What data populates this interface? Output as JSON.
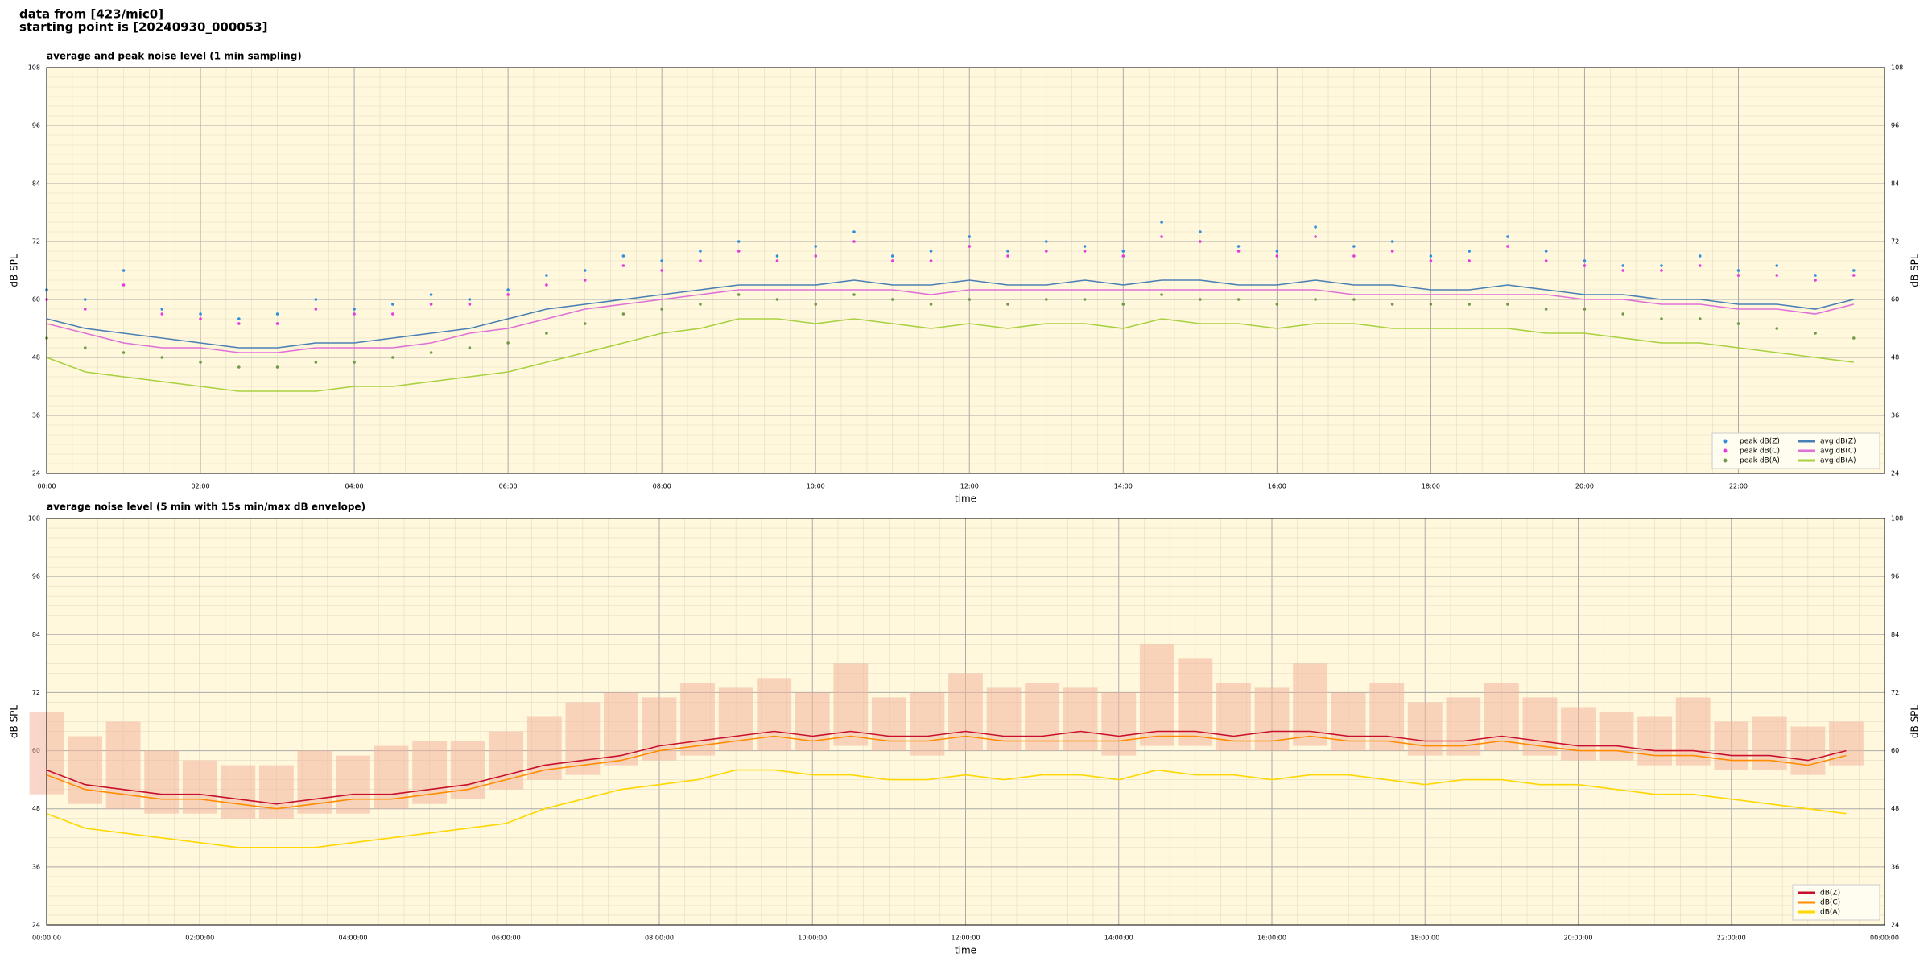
{
  "header": [
    "data from [423/mic0]",
    "starting point is [20240930_000053]"
  ],
  "chart_data": [
    {
      "type": "line",
      "title": "average and peak noise level (1 min sampling)",
      "xlabel": "time",
      "ylabel": "dB SPL",
      "xlim": [
        0,
        1434
      ],
      "ylim": [
        24,
        108
      ],
      "yticks": [
        24,
        36,
        48,
        60,
        72,
        84,
        96,
        108
      ],
      "xticks": [
        {
          "value": 0,
          "label": "00:00"
        },
        {
          "value": 120,
          "label": "02:00"
        },
        {
          "value": 240,
          "label": "04:00"
        },
        {
          "value": 360,
          "label": "06:00"
        },
        {
          "value": 480,
          "label": "08:00"
        },
        {
          "value": 600,
          "label": "10:00"
        },
        {
          "value": 720,
          "label": "12:00"
        },
        {
          "value": 840,
          "label": "14:00"
        },
        {
          "value": 960,
          "label": "16:00"
        },
        {
          "value": 1080,
          "label": "18:00"
        },
        {
          "value": 1200,
          "label": "20:00"
        },
        {
          "value": 1320,
          "label": "22:00"
        }
      ],
      "grid": true,
      "minor_grid": true,
      "legend": "lower right",
      "legend_columns": 2,
      "x": [
        0,
        30,
        60,
        90,
        120,
        150,
        180,
        210,
        240,
        270,
        300,
        330,
        360,
        390,
        420,
        450,
        480,
        510,
        540,
        570,
        600,
        630,
        660,
        690,
        720,
        750,
        780,
        810,
        840,
        870,
        900,
        930,
        960,
        990,
        1020,
        1050,
        1080,
        1110,
        1140,
        1170,
        1200,
        1230,
        1260,
        1290,
        1320,
        1350,
        1380,
        1410
      ],
      "series": [
        {
          "name": "peak dB(Z)",
          "mark": "dot",
          "color": "#2f8ee0",
          "values": [
            62,
            60,
            66,
            58,
            57,
            56,
            57,
            60,
            58,
            59,
            61,
            60,
            62,
            65,
            66,
            69,
            68,
            70,
            72,
            69,
            71,
            74,
            69,
            70,
            73,
            70,
            72,
            71,
            70,
            76,
            74,
            71,
            70,
            75,
            71,
            72,
            69,
            70,
            73,
            70,
            68,
            67,
            67,
            69,
            66,
            67,
            65,
            66
          ]
        },
        {
          "name": "peak dB(C)",
          "mark": "dot",
          "color": "#e838e0",
          "values": [
            60,
            58,
            63,
            57,
            56,
            55,
            55,
            58,
            57,
            57,
            59,
            59,
            61,
            63,
            64,
            67,
            66,
            68,
            70,
            68,
            69,
            72,
            68,
            68,
            71,
            69,
            70,
            70,
            69,
            73,
            72,
            70,
            69,
            73,
            69,
            70,
            68,
            68,
            71,
            68,
            67,
            66,
            66,
            67,
            65,
            65,
            64,
            65
          ]
        },
        {
          "name": "peak dB(A)",
          "mark": "dot",
          "color": "#6f9a48",
          "values": [
            52,
            50,
            49,
            48,
            47,
            46,
            46,
            47,
            47,
            48,
            49,
            50,
            51,
            53,
            55,
            57,
            58,
            59,
            61,
            60,
            59,
            61,
            60,
            59,
            60,
            59,
            60,
            60,
            59,
            61,
            60,
            60,
            59,
            60,
            60,
            59,
            59,
            59,
            59,
            58,
            58,
            57,
            56,
            56,
            55,
            54,
            53,
            52
          ]
        },
        {
          "name": "avg dB(Z)",
          "mark": "line",
          "color": "#4a7fb5",
          "values": [
            56,
            54,
            53,
            52,
            51,
            50,
            50,
            51,
            51,
            52,
            53,
            54,
            56,
            58,
            59,
            60,
            61,
            62,
            63,
            63,
            63,
            64,
            63,
            63,
            64,
            63,
            63,
            64,
            63,
            64,
            64,
            63,
            63,
            64,
            63,
            63,
            62,
            62,
            63,
            62,
            61,
            61,
            60,
            60,
            59,
            59,
            58,
            60
          ]
        },
        {
          "name": "avg dB(C)",
          "mark": "line",
          "color": "#e070d8",
          "values": [
            55,
            53,
            51,
            50,
            50,
            49,
            49,
            50,
            50,
            50,
            51,
            53,
            54,
            56,
            58,
            59,
            60,
            61,
            62,
            62,
            62,
            62,
            62,
            61,
            62,
            62,
            62,
            62,
            62,
            62,
            62,
            62,
            62,
            62,
            61,
            61,
            61,
            61,
            61,
            61,
            60,
            60,
            59,
            59,
            58,
            58,
            57,
            59
          ]
        },
        {
          "name": "avg dB(A)",
          "mark": "line",
          "color": "#a8d040",
          "values": [
            48,
            45,
            44,
            43,
            42,
            41,
            41,
            41,
            42,
            42,
            43,
            44,
            45,
            47,
            49,
            51,
            53,
            54,
            56,
            56,
            55,
            56,
            55,
            54,
            55,
            54,
            55,
            55,
            54,
            56,
            55,
            55,
            54,
            55,
            55,
            54,
            54,
            54,
            54,
            53,
            53,
            52,
            51,
            51,
            50,
            49,
            48,
            47
          ]
        }
      ]
    },
    {
      "type": "line",
      "title": "average noise level (5 min with 15s min/max dB envelope)",
      "xlabel": "time",
      "ylabel": "dB SPL",
      "xlim": [
        0,
        1440
      ],
      "ylim": [
        24,
        108
      ],
      "yticks": [
        24,
        36,
        48,
        60,
        72,
        84,
        96,
        108
      ],
      "xticks": [
        {
          "value": 0,
          "label": "00:00:00"
        },
        {
          "value": 120,
          "label": "02:00:00"
        },
        {
          "value": 240,
          "label": "04:00:00"
        },
        {
          "value": 360,
          "label": "06:00:00"
        },
        {
          "value": 480,
          "label": "08:00:00"
        },
        {
          "value": 600,
          "label": "10:00:00"
        },
        {
          "value": 720,
          "label": "12:00:00"
        },
        {
          "value": 840,
          "label": "14:00:00"
        },
        {
          "value": 960,
          "label": "16:00:00"
        },
        {
          "value": 1080,
          "label": "18:00:00"
        },
        {
          "value": 1200,
          "label": "20:00:00"
        },
        {
          "value": 1320,
          "label": "22:00:00"
        },
        {
          "value": 1440,
          "label": "00:00:00"
        }
      ],
      "grid": true,
      "minor_grid": true,
      "legend": "lower right",
      "legend_columns": 1,
      "x": [
        0,
        30,
        60,
        90,
        120,
        150,
        180,
        210,
        240,
        270,
        300,
        330,
        360,
        390,
        420,
        450,
        480,
        510,
        540,
        570,
        600,
        630,
        660,
        690,
        720,
        750,
        780,
        810,
        840,
        870,
        900,
        930,
        960,
        990,
        1020,
        1050,
        1080,
        1110,
        1140,
        1170,
        1200,
        1230,
        1260,
        1290,
        1320,
        1350,
        1380,
        1410
      ],
      "envelope": {
        "color": "#f4b49c",
        "high": [
          68,
          63,
          66,
          60,
          58,
          57,
          57,
          60,
          59,
          61,
          62,
          62,
          64,
          67,
          70,
          72,
          71,
          74,
          73,
          75,
          72,
          78,
          71,
          72,
          76,
          73,
          74,
          73,
          72,
          82,
          79,
          74,
          73,
          78,
          72,
          74,
          70,
          71,
          74,
          71,
          69,
          68,
          67,
          71,
          66,
          67,
          65,
          66
        ],
        "low": [
          51,
          49,
          48,
          47,
          47,
          46,
          46,
          47,
          47,
          48,
          49,
          50,
          52,
          54,
          55,
          57,
          58,
          59,
          60,
          60,
          60,
          61,
          60,
          59,
          60,
          60,
          60,
          60,
          59,
          61,
          61,
          60,
          60,
          61,
          60,
          60,
          59,
          59,
          60,
          59,
          58,
          58,
          57,
          57,
          56,
          56,
          55,
          57
        ]
      },
      "series": [
        {
          "name": "dB(Z)",
          "mark": "line",
          "color": "#c8102e",
          "values": [
            56,
            53,
            52,
            51,
            51,
            50,
            49,
            50,
            51,
            51,
            52,
            53,
            55,
            57,
            58,
            59,
            61,
            62,
            63,
            64,
            63,
            64,
            63,
            63,
            64,
            63,
            63,
            64,
            63,
            64,
            64,
            63,
            64,
            64,
            63,
            63,
            62,
            62,
            63,
            62,
            61,
            61,
            60,
            60,
            59,
            59,
            58,
            60
          ]
        },
        {
          "name": "dB(C)",
          "mark": "line",
          "color": "#ff8c00",
          "values": [
            55,
            52,
            51,
            50,
            50,
            49,
            48,
            49,
            50,
            50,
            51,
            52,
            54,
            56,
            57,
            58,
            60,
            61,
            62,
            63,
            62,
            63,
            62,
            62,
            63,
            62,
            62,
            62,
            62,
            63,
            63,
            62,
            62,
            63,
            62,
            62,
            61,
            61,
            62,
            61,
            60,
            60,
            59,
            59,
            58,
            58,
            57,
            59
          ]
        },
        {
          "name": "dB(A)",
          "mark": "line",
          "color": "#ffd700",
          "values": [
            47,
            44,
            43,
            42,
            41,
            40,
            40,
            40,
            41,
            42,
            43,
            44,
            45,
            48,
            50,
            52,
            53,
            54,
            56,
            56,
            55,
            55,
            54,
            54,
            55,
            54,
            55,
            55,
            54,
            56,
            55,
            55,
            54,
            55,
            55,
            54,
            53,
            54,
            54,
            53,
            53,
            52,
            51,
            51,
            50,
            49,
            48,
            47
          ]
        }
      ]
    }
  ]
}
